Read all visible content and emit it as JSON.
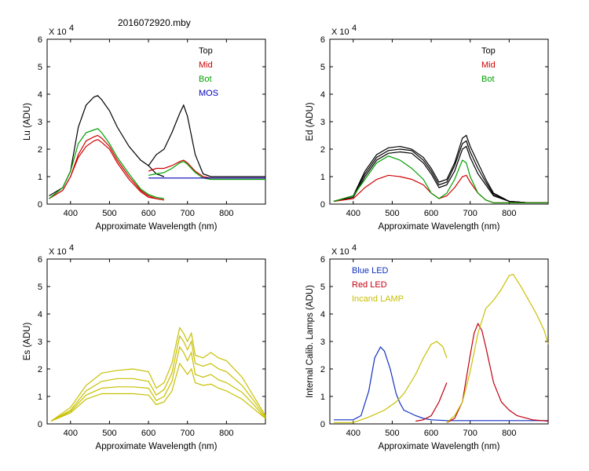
{
  "figure_title": "2016072920.mby",
  "colors": {
    "top": "#000000",
    "mid": "#d00000",
    "bot": "#00a000",
    "mos": "#0000c0",
    "yellow": "#c8c000",
    "blue_led": "#1030c0",
    "red_led": "#c00010",
    "incand": "#c8c000"
  },
  "chart_data": [
    {
      "type": "line",
      "id": "lu",
      "ylabel": "Lu (ADU)",
      "xlabel": "Approximate Wavelength (nm)",
      "multiplier": "X 10",
      "multiplier_exp": "4",
      "xlim": [
        340,
        900
      ],
      "ylim": [
        0,
        6
      ],
      "xticks": [
        400,
        500,
        600,
        700,
        800
      ],
      "yticks": [
        0,
        1,
        2,
        3,
        4,
        5,
        6
      ],
      "legend": [
        {
          "label": "Top",
          "color": "#000000"
        },
        {
          "label": "Mid",
          "color": "#d00000"
        },
        {
          "label": "Bot",
          "color": "#00a000"
        },
        {
          "label": "MOS",
          "color": "#0000c0"
        }
      ],
      "series": [
        {
          "name": "Top A",
          "color": "#000000",
          "x": [
            345,
            380,
            400,
            420,
            440,
            460,
            470,
            480,
            500,
            520,
            550,
            580,
            600,
            620,
            640
          ],
          "y": [
            0.3,
            0.6,
            1.2,
            2.8,
            3.6,
            3.9,
            3.95,
            3.8,
            3.4,
            2.8,
            2.1,
            1.6,
            1.4,
            1.1,
            1.0
          ]
        },
        {
          "name": "Top B",
          "color": "#000000",
          "x": [
            600,
            620,
            640,
            660,
            680,
            690,
            700,
            720,
            740,
            760,
            800,
            850,
            900
          ],
          "y": [
            1.4,
            1.8,
            2.0,
            2.6,
            3.3,
            3.6,
            3.2,
            1.8,
            1.1,
            1.0,
            1.0,
            1.0,
            1.0
          ]
        },
        {
          "name": "Mid A1",
          "color": "#d00000",
          "x": [
            345,
            380,
            400,
            420,
            440,
            460,
            470,
            480,
            500,
            520,
            550,
            580,
            600,
            620,
            640
          ],
          "y": [
            0.2,
            0.5,
            1.0,
            1.8,
            2.3,
            2.45,
            2.5,
            2.4,
            2.1,
            1.6,
            1.0,
            0.5,
            0.3,
            0.2,
            0.15
          ]
        },
        {
          "name": "Mid A2",
          "color": "#d00000",
          "x": [
            345,
            380,
            400,
            420,
            440,
            460,
            470,
            480,
            500,
            520,
            550,
            580,
            600,
            620,
            640
          ],
          "y": [
            0.2,
            0.5,
            1.0,
            1.7,
            2.1,
            2.3,
            2.35,
            2.25,
            2.0,
            1.5,
            0.9,
            0.45,
            0.25,
            0.2,
            0.15
          ]
        },
        {
          "name": "Mid B",
          "color": "#d00000",
          "x": [
            600,
            620,
            640,
            660,
            680,
            690,
            700,
            720,
            740,
            760,
            800,
            850,
            900
          ],
          "y": [
            1.2,
            1.3,
            1.3,
            1.4,
            1.55,
            1.6,
            1.5,
            1.2,
            1.0,
            0.95,
            0.95,
            0.95,
            0.95
          ]
        },
        {
          "name": "Bot A",
          "color": "#00a000",
          "x": [
            345,
            380,
            400,
            420,
            440,
            460,
            470,
            480,
            500,
            520,
            550,
            580,
            600,
            620,
            640
          ],
          "y": [
            0.2,
            0.6,
            1.2,
            2.2,
            2.6,
            2.7,
            2.75,
            2.6,
            2.2,
            1.7,
            1.1,
            0.55,
            0.35,
            0.25,
            0.2
          ]
        },
        {
          "name": "Bot B",
          "color": "#00a000",
          "x": [
            600,
            620,
            640,
            660,
            680,
            690,
            700,
            720,
            740,
            760,
            800,
            850,
            900
          ],
          "y": [
            1.05,
            1.1,
            1.15,
            1.3,
            1.5,
            1.55,
            1.45,
            1.15,
            0.95,
            0.9,
            0.9,
            0.9,
            0.9
          ]
        },
        {
          "name": "MOS",
          "color": "#0000c0",
          "x": [
            600,
            700,
            800,
            900
          ],
          "y": [
            0.95,
            0.95,
            0.95,
            0.95
          ]
        }
      ]
    },
    {
      "type": "line",
      "id": "ed",
      "ylabel": "Ed  (ADU)",
      "xlabel": "Approximate Wavelength (nm)",
      "multiplier": "X 10",
      "multiplier_exp": "4",
      "xlim": [
        340,
        900
      ],
      "ylim": [
        0,
        6
      ],
      "xticks": [
        400,
        500,
        600,
        700,
        800
      ],
      "yticks": [
        0,
        1,
        2,
        3,
        4,
        5,
        6
      ],
      "legend": [
        {
          "label": "Top",
          "color": "#000000"
        },
        {
          "label": "Mid",
          "color": "#d00000"
        },
        {
          "label": "Bot",
          "color": "#00a000"
        }
      ],
      "series": [
        {
          "name": "Top 1",
          "color": "#000000",
          "x": [
            350,
            400,
            430,
            460,
            490,
            520,
            550,
            580,
            600,
            620,
            640,
            660,
            680,
            690,
            700,
            720,
            740,
            760,
            800,
            850,
            900
          ],
          "y": [
            0.1,
            0.3,
            1.2,
            1.8,
            2.05,
            2.1,
            2.0,
            1.7,
            1.3,
            0.8,
            0.9,
            1.5,
            2.4,
            2.5,
            2.1,
            1.5,
            0.9,
            0.4,
            0.1,
            0.05,
            0.05
          ]
        },
        {
          "name": "Top 2",
          "color": "#000000",
          "x": [
            350,
            400,
            430,
            460,
            490,
            520,
            550,
            580,
            600,
            620,
            640,
            660,
            680,
            690,
            700,
            720,
            740,
            760,
            800,
            850,
            900
          ],
          "y": [
            0.1,
            0.3,
            1.1,
            1.7,
            1.95,
            2.0,
            1.95,
            1.6,
            1.2,
            0.7,
            0.8,
            1.4,
            2.2,
            2.3,
            1.9,
            1.3,
            0.8,
            0.35,
            0.1,
            0.05,
            0.05
          ]
        },
        {
          "name": "Top 3",
          "color": "#000000",
          "x": [
            350,
            400,
            430,
            460,
            490,
            520,
            550,
            580,
            600,
            620,
            640,
            660,
            680,
            690,
            700,
            720,
            740,
            760,
            800,
            850,
            900
          ],
          "y": [
            0.1,
            0.25,
            1.0,
            1.6,
            1.85,
            1.9,
            1.85,
            1.5,
            1.1,
            0.6,
            0.7,
            1.2,
            2.0,
            2.1,
            1.7,
            1.1,
            0.7,
            0.3,
            0.1,
            0.05,
            0.05
          ]
        },
        {
          "name": "Mid",
          "color": "#d00000",
          "x": [
            350,
            400,
            430,
            460,
            490,
            520,
            550,
            580,
            600,
            620,
            640,
            660,
            680,
            690,
            700,
            720,
            740,
            760,
            800,
            850,
            900
          ],
          "y": [
            0.1,
            0.2,
            0.6,
            0.9,
            1.05,
            1.0,
            0.9,
            0.7,
            0.4,
            0.2,
            0.3,
            0.6,
            1.0,
            1.05,
            0.8,
            0.4,
            0.15,
            0.05,
            0.05,
            0.05,
            0.05
          ]
        },
        {
          "name": "Bot",
          "color": "#00a000",
          "x": [
            350,
            400,
            430,
            460,
            490,
            520,
            550,
            580,
            600,
            620,
            640,
            660,
            680,
            690,
            700,
            720,
            740,
            760,
            800,
            850,
            900
          ],
          "y": [
            0.1,
            0.3,
            0.9,
            1.5,
            1.75,
            1.6,
            1.3,
            0.9,
            0.4,
            0.2,
            0.4,
            0.9,
            1.6,
            1.5,
            1.0,
            0.4,
            0.15,
            0.05,
            0.05,
            0.05,
            0.05
          ]
        }
      ]
    },
    {
      "type": "line",
      "id": "es",
      "ylabel": "Es  (ADU)",
      "xlabel": "Approximate Wavelength (nm)",
      "multiplier": "X 10",
      "multiplier_exp": "4",
      "xlim": [
        340,
        900
      ],
      "ylim": [
        0,
        6
      ],
      "xticks": [
        400,
        500,
        600,
        700,
        800
      ],
      "yticks": [
        0,
        1,
        2,
        3,
        4,
        5,
        6
      ],
      "legend": [],
      "series": [
        {
          "name": "Es 1",
          "color": "#c8c000",
          "x": [
            350,
            400,
            440,
            480,
            520,
            560,
            600,
            620,
            640,
            660,
            680,
            690,
            700,
            710,
            720,
            740,
            760,
            780,
            800,
            840,
            870,
            900
          ],
          "y": [
            0.1,
            0.6,
            1.4,
            1.85,
            1.95,
            2.0,
            1.9,
            1.3,
            1.5,
            2.2,
            3.5,
            3.3,
            3.0,
            3.3,
            2.5,
            2.4,
            2.6,
            2.4,
            2.3,
            1.7,
            1.0,
            0.3
          ]
        },
        {
          "name": "Es 2",
          "color": "#c8c000",
          "x": [
            350,
            400,
            440,
            480,
            520,
            560,
            600,
            620,
            640,
            660,
            680,
            690,
            700,
            710,
            720,
            740,
            760,
            780,
            800,
            840,
            870,
            900
          ],
          "y": [
            0.1,
            0.5,
            1.2,
            1.55,
            1.65,
            1.65,
            1.55,
            1.05,
            1.25,
            1.85,
            3.2,
            3.0,
            2.7,
            3.0,
            2.2,
            2.1,
            2.2,
            2.0,
            1.9,
            1.4,
            0.85,
            0.25
          ]
        },
        {
          "name": "Es 3",
          "color": "#c8c000",
          "x": [
            350,
            400,
            440,
            480,
            520,
            560,
            600,
            620,
            640,
            660,
            680,
            690,
            700,
            710,
            720,
            740,
            760,
            780,
            800,
            840,
            870,
            900
          ],
          "y": [
            0.1,
            0.45,
            1.05,
            1.3,
            1.35,
            1.35,
            1.3,
            0.85,
            1.0,
            1.55,
            2.8,
            2.6,
            2.3,
            2.6,
            1.8,
            1.7,
            1.8,
            1.6,
            1.5,
            1.15,
            0.7,
            0.2
          ]
        },
        {
          "name": "Es 4",
          "color": "#c8c000",
          "x": [
            350,
            400,
            440,
            480,
            520,
            560,
            600,
            620,
            640,
            660,
            680,
            690,
            700,
            710,
            720,
            740,
            760,
            780,
            800,
            840,
            870,
            900
          ],
          "y": [
            0.1,
            0.4,
            0.9,
            1.1,
            1.1,
            1.1,
            1.05,
            0.7,
            0.8,
            1.2,
            2.2,
            2.0,
            1.8,
            2.0,
            1.5,
            1.4,
            1.45,
            1.3,
            1.2,
            0.9,
            0.55,
            0.2
          ]
        }
      ]
    },
    {
      "type": "line",
      "id": "lamps",
      "ylabel": "Internal Calib. Lamps (ADU)",
      "xlabel": "Approximate Wavelength (nm)",
      "multiplier": "X 10",
      "multiplier_exp": "4",
      "xlim": [
        340,
        900
      ],
      "ylim": [
        0,
        6
      ],
      "xticks": [
        400,
        500,
        600,
        700,
        800
      ],
      "yticks": [
        0,
        1,
        2,
        3,
        4,
        5,
        6
      ],
      "legend": [
        {
          "label": "Blue LED",
          "color": "#1030c0"
        },
        {
          "label": "Red LED",
          "color": "#c00010"
        },
        {
          "label": "Incand LAMP",
          "color": "#c8c000"
        }
      ],
      "series": [
        {
          "name": "Blue LED",
          "color": "#1030c0",
          "x": [
            350,
            400,
            420,
            440,
            455,
            470,
            480,
            495,
            510,
            520,
            530,
            545,
            560,
            580,
            600,
            640,
            700,
            800,
            900
          ],
          "y": [
            0.15,
            0.15,
            0.3,
            1.2,
            2.4,
            2.8,
            2.65,
            2.0,
            1.1,
            0.75,
            0.5,
            0.4,
            0.3,
            0.2,
            0.15,
            0.12,
            0.12,
            0.12,
            0.12
          ]
        },
        {
          "name": "Red LED A",
          "color": "#c00010",
          "x": [
            560,
            580,
            600,
            620,
            640
          ],
          "y": [
            0.1,
            0.15,
            0.3,
            0.8,
            1.5
          ]
        },
        {
          "name": "Red LED B",
          "color": "#c00010",
          "x": [
            640,
            660,
            680,
            700,
            710,
            720,
            730,
            740,
            760,
            780,
            800,
            820,
            860,
            900
          ],
          "y": [
            0.05,
            0.2,
            0.8,
            2.5,
            3.3,
            3.65,
            3.4,
            2.8,
            1.5,
            0.8,
            0.5,
            0.3,
            0.15,
            0.1
          ]
        },
        {
          "name": "Incand A",
          "color": "#c8c000",
          "x": [
            350,
            400,
            440,
            480,
            510,
            530,
            560,
            580,
            600,
            615,
            630,
            640
          ],
          "y": [
            0.05,
            0.05,
            0.25,
            0.5,
            0.8,
            1.1,
            1.8,
            2.4,
            2.9,
            3.0,
            2.8,
            2.4
          ]
        },
        {
          "name": "Incand B",
          "color": "#c8c000",
          "x": [
            640,
            660,
            680,
            700,
            720,
            740,
            760,
            780,
            800,
            810,
            830,
            850,
            870,
            890,
            900
          ],
          "y": [
            0.05,
            0.3,
            0.8,
            1.9,
            3.3,
            4.2,
            4.5,
            4.9,
            5.4,
            5.45,
            5.0,
            4.5,
            4.0,
            3.4,
            2.9
          ]
        }
      ]
    }
  ]
}
